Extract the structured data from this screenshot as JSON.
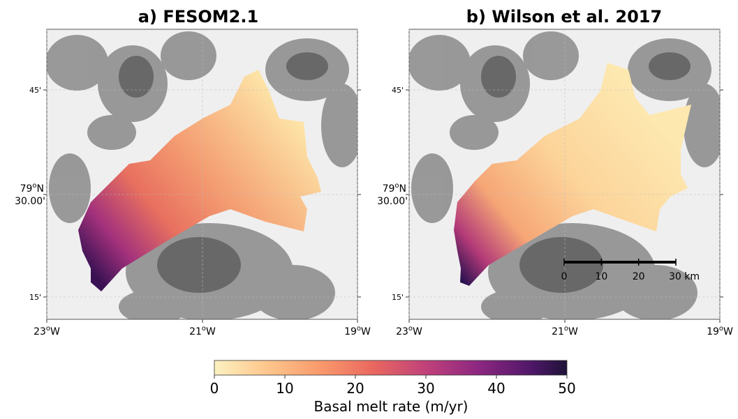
{
  "panels": [
    {
      "title": "a) FESOM2.1"
    },
    {
      "title": "b) Wilson et al. 2017",
      "scale_bar": {
        "ticks": [
          0,
          10,
          20,
          {
            "value": 30,
            "label": "30 km"
          }
        ]
      }
    }
  ],
  "lat_labels": [
    {
      "text": "45'"
    },
    {
      "deg": "79",
      "sup": "o",
      "hem": "N",
      "min": "30.00'"
    },
    {
      "text": "15'"
    }
  ],
  "lon_labels": [
    {
      "deg": "23",
      "sup": "o",
      "hem": "W"
    },
    {
      "deg": "21",
      "sup": "o",
      "hem": "W"
    },
    {
      "deg": "19",
      "sup": "o",
      "hem": "W"
    }
  ],
  "colorbar": {
    "label": "Basal melt rate (m/yr)",
    "lim": [
      0,
      50
    ],
    "ticks": [
      0,
      10,
      20,
      30,
      40,
      50
    ]
  }
}
